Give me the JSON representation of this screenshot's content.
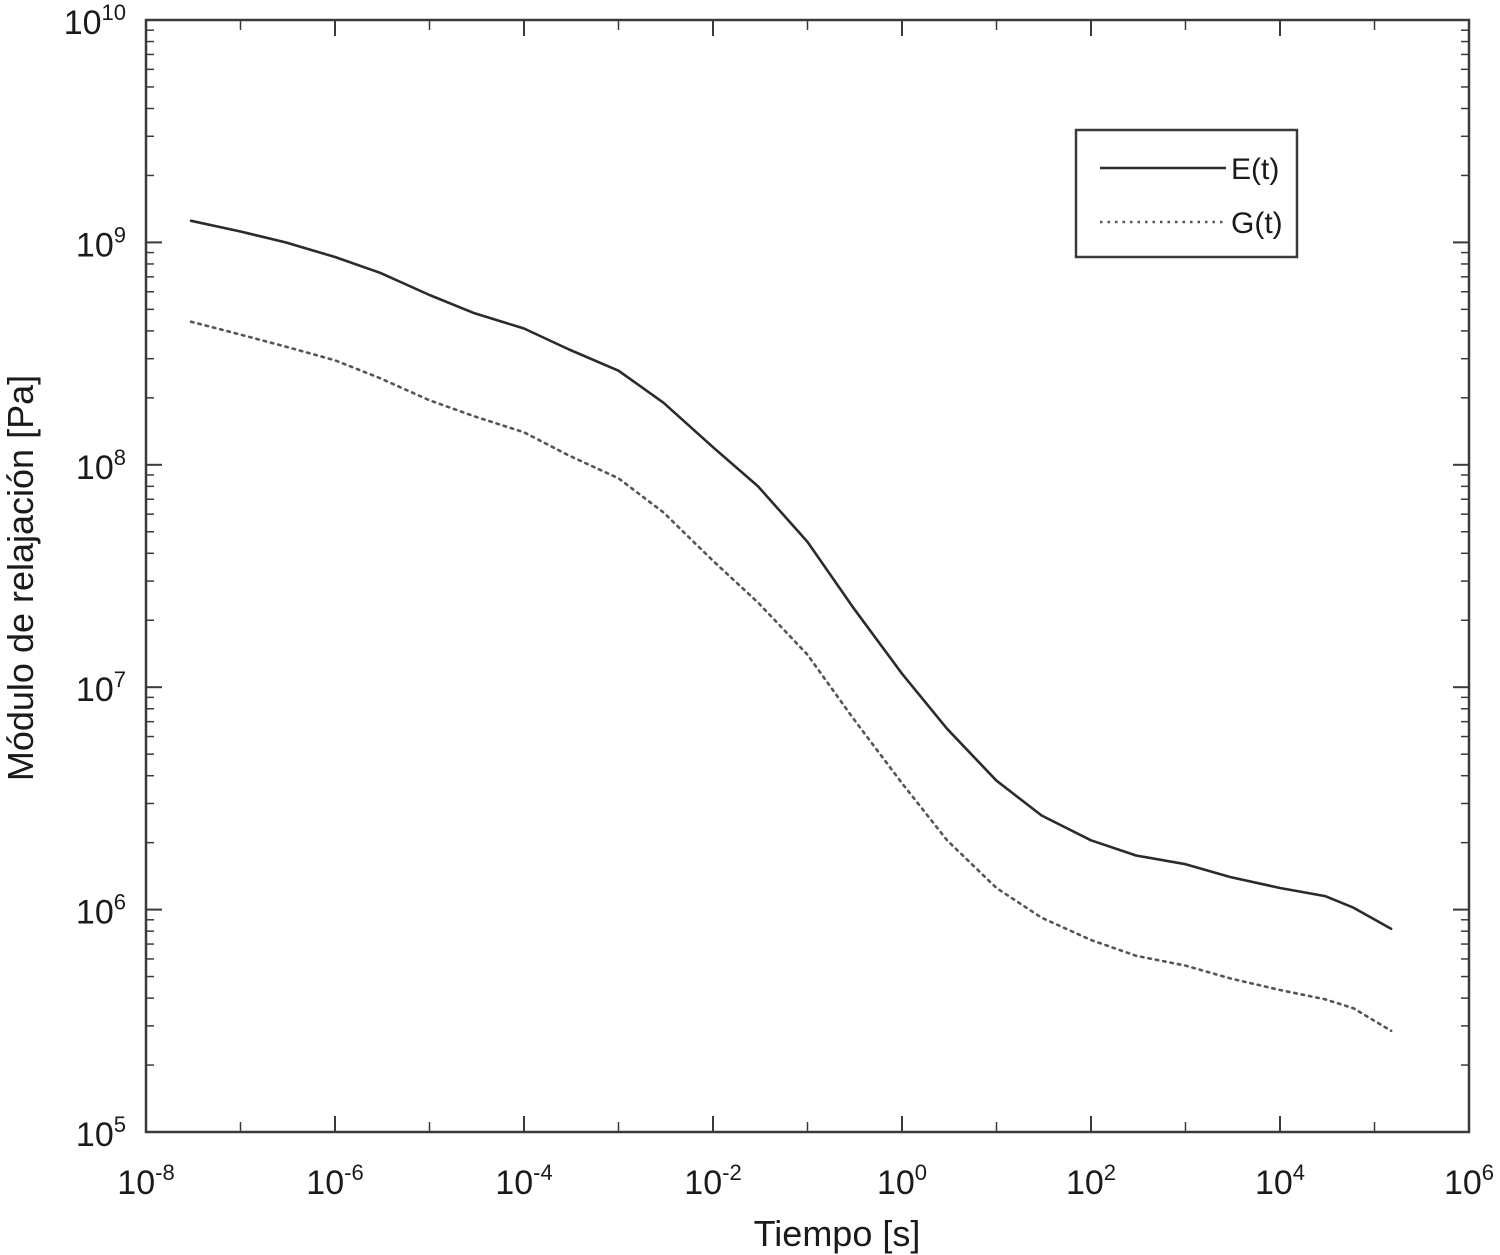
{
  "chart_data": {
    "type": "line",
    "xlabel": "Tiempo [s]",
    "ylabel": "Módulo de relajación [Pa]",
    "x_scale": "log",
    "y_scale": "log",
    "xlim": [
      1e-08,
      1000000.0
    ],
    "ylim": [
      100000.0,
      10000000000.0
    ],
    "grid": false,
    "legend_position": "top-right",
    "x_ticks": [
      {
        "base": "10",
        "exp": "-8"
      },
      {
        "base": "10",
        "exp": "-6"
      },
      {
        "base": "10",
        "exp": "-4"
      },
      {
        "base": "10",
        "exp": "-2"
      },
      {
        "base": "10",
        "exp": "0"
      },
      {
        "base": "10",
        "exp": "2"
      },
      {
        "base": "10",
        "exp": "4"
      },
      {
        "base": "10",
        "exp": "6"
      }
    ],
    "y_ticks": [
      {
        "base": "10",
        "exp": "5"
      },
      {
        "base": "10",
        "exp": "6"
      },
      {
        "base": "10",
        "exp": "7"
      },
      {
        "base": "10",
        "exp": "8"
      },
      {
        "base": "10",
        "exp": "9"
      },
      {
        "base": "10",
        "exp": "10"
      }
    ],
    "x": [
      3e-08,
      1e-07,
      3e-07,
      1e-06,
      3e-06,
      1e-05,
      3e-05,
      0.0001,
      0.0003,
      0.001,
      0.003,
      0.01,
      0.03,
      0.1,
      0.3,
      1,
      3,
      10,
      30,
      100,
      300,
      1000,
      3000,
      10000,
      30000,
      60000,
      150000
    ],
    "series": [
      {
        "name": "E(t)",
        "style": "solid",
        "color": "#2b2b2b",
        "values": [
          1250000000.0,
          1120000000.0,
          1000000000.0,
          860000000.0,
          730000000.0,
          580000000.0,
          480000000.0,
          410000000.0,
          330000000.0,
          265000000.0,
          190000000.0,
          120000000.0,
          80000000.0,
          45000000.0,
          23000000.0,
          11500000.0,
          6500000.0,
          3800000.0,
          2650000.0,
          2050000.0,
          1750000.0,
          1600000.0,
          1400000.0,
          1250000.0,
          1150000.0,
          1020000.0,
          820000.0
        ]
      },
      {
        "name": "G(t)",
        "style": "dotted",
        "color": "#555555",
        "values": [
          440000000.0,
          385000000.0,
          340000000.0,
          295000000.0,
          245000000.0,
          195000000.0,
          165000000.0,
          140000000.0,
          110000000.0,
          87000000.0,
          61000000.0,
          37000000.0,
          24000000.0,
          14000000.0,
          7300000.0,
          3700000.0,
          2050000.0,
          1250000.0,
          920000.0,
          730000.0,
          620000.0,
          560000.0,
          490000.0,
          435000.0,
          395000.0,
          360000.0,
          285000.0
        ]
      }
    ]
  }
}
